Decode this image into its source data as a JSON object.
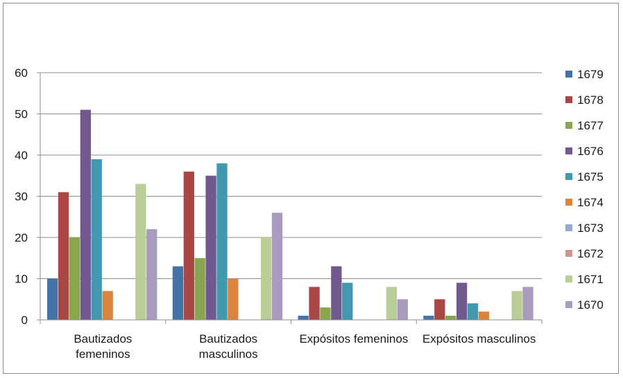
{
  "chart_data": {
    "type": "bar",
    "title": "",
    "xlabel": "",
    "ylabel": "",
    "ylim": [
      0,
      60
    ],
    "yticks": [
      "0",
      "10",
      "20",
      "30",
      "40",
      "50",
      "60"
    ],
    "grid": true,
    "legend_position": "right",
    "categories": [
      [
        "Bautizados",
        "femeninos"
      ],
      [
        "Bautizados",
        "masculinos"
      ],
      [
        "Expósitos femeninos"
      ],
      [
        "Expósitos masculinos"
      ]
    ],
    "series": [
      {
        "name": "1679",
        "color": "#4572A7",
        "values": [
          10,
          13,
          1,
          1
        ]
      },
      {
        "name": "1678",
        "color": "#AA4643",
        "values": [
          31,
          36,
          8,
          5
        ]
      },
      {
        "name": "1677",
        "color": "#89A54E",
        "values": [
          20,
          15,
          3,
          1
        ]
      },
      {
        "name": "1676",
        "color": "#71588F",
        "values": [
          51,
          35,
          13,
          9
        ]
      },
      {
        "name": "1675",
        "color": "#4198AF",
        "values": [
          39,
          38,
          9,
          4
        ]
      },
      {
        "name": "1674",
        "color": "#DB843D",
        "values": [
          7,
          10,
          0,
          2
        ]
      },
      {
        "name": "1673",
        "color": "#93A9CF",
        "values": [
          0,
          0,
          0,
          0
        ]
      },
      {
        "name": "1672",
        "color": "#D19392",
        "values": [
          0,
          0,
          0,
          0
        ]
      },
      {
        "name": "1671",
        "color": "#B9CD96",
        "values": [
          33,
          20,
          8,
          7
        ]
      },
      {
        "name": "1670",
        "color": "#A99BBD",
        "values": [
          22,
          26,
          5,
          8
        ]
      }
    ]
  }
}
